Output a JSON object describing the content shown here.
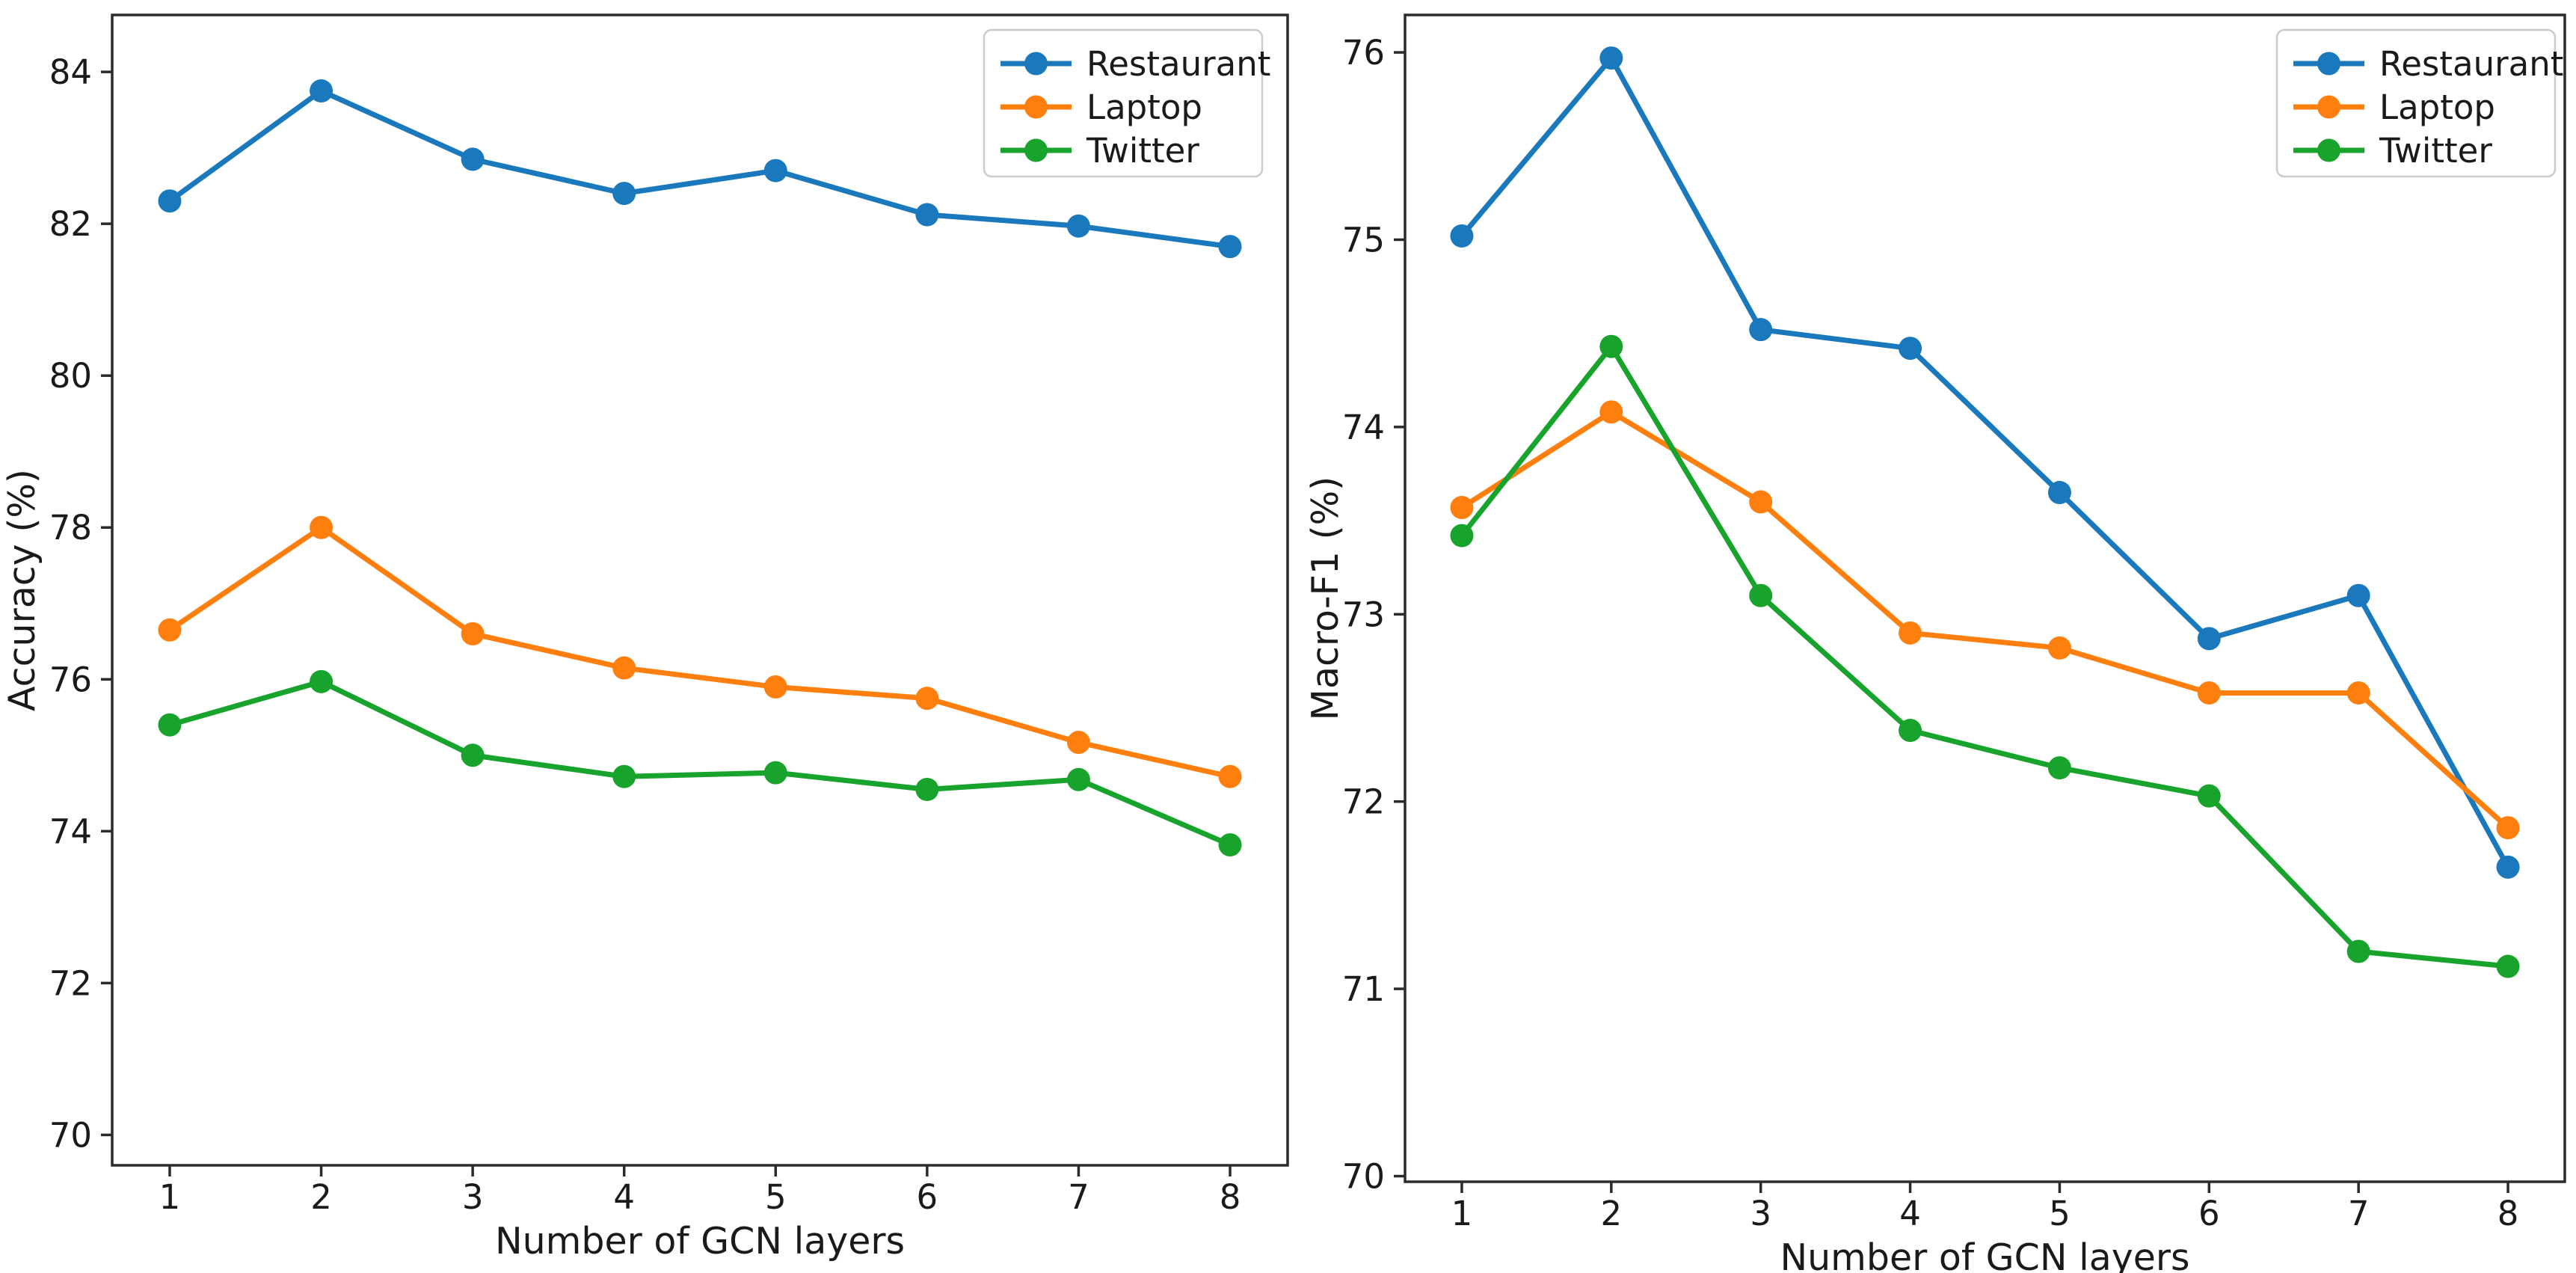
{
  "figure": {
    "background": "#ffffff",
    "description": "Two line charts showing Accuracy and Macro-F1 versus number of GCN layers for three datasets"
  },
  "colors": {
    "restaurant": "#1a78bc",
    "laptop": "#ff7f0e",
    "twitter": "#17a32c",
    "text": "#1a1a1a",
    "spine": "#2b2b2b",
    "legend_border": "#cccccc",
    "legend_background": "#ffffff"
  },
  "chart_data": [
    {
      "type": "line",
      "title": "",
      "xlabel": "Number of GCN layers",
      "ylabel": "Accuracy (%)",
      "x": [
        1,
        2,
        3,
        4,
        5,
        6,
        7,
        8
      ],
      "xticks": [
        1,
        2,
        3,
        4,
        5,
        6,
        7,
        8
      ],
      "yticks": [
        70,
        72,
        74,
        76,
        78,
        80,
        82,
        84
      ],
      "xlim": [
        0.62,
        8.38
      ],
      "ylim": [
        69.6,
        84.75
      ],
      "grid": false,
      "legend_position": "upper right",
      "series": [
        {
          "name": "Restaurant",
          "color_key": "restaurant",
          "values": [
            82.3,
            83.75,
            82.85,
            82.4,
            82.7,
            82.12,
            81.97,
            81.7
          ]
        },
        {
          "name": "Laptop",
          "color_key": "laptop",
          "values": [
            76.65,
            78.0,
            76.6,
            76.15,
            75.9,
            75.75,
            75.17,
            74.72
          ]
        },
        {
          "name": "Twitter",
          "color_key": "twitter",
          "values": [
            75.4,
            75.97,
            75.0,
            74.72,
            74.77,
            74.55,
            74.68,
            73.82
          ]
        }
      ]
    },
    {
      "type": "line",
      "title": "",
      "xlabel": "Number of GCN layers",
      "ylabel": "Macro-F1 (%)",
      "x": [
        1,
        2,
        3,
        4,
        5,
        6,
        7,
        8
      ],
      "xticks": [
        1,
        2,
        3,
        4,
        5,
        6,
        7,
        8
      ],
      "yticks": [
        70,
        71,
        72,
        73,
        74,
        75,
        76
      ],
      "xlim": [
        0.62,
        8.38
      ],
      "ylim": [
        69.97,
        76.2
      ],
      "grid": false,
      "legend_position": "upper right",
      "series": [
        {
          "name": "Restaurant",
          "color_key": "restaurant",
          "values": [
            75.02,
            75.97,
            74.52,
            74.42,
            73.65,
            72.87,
            73.1,
            71.65
          ]
        },
        {
          "name": "Laptop",
          "color_key": "laptop",
          "values": [
            73.57,
            74.08,
            73.6,
            72.9,
            72.82,
            72.58,
            72.58,
            71.86
          ]
        },
        {
          "name": "Twitter",
          "color_key": "twitter",
          "values": [
            73.42,
            74.43,
            73.1,
            72.38,
            72.18,
            72.03,
            71.2,
            71.12
          ]
        }
      ]
    }
  ]
}
